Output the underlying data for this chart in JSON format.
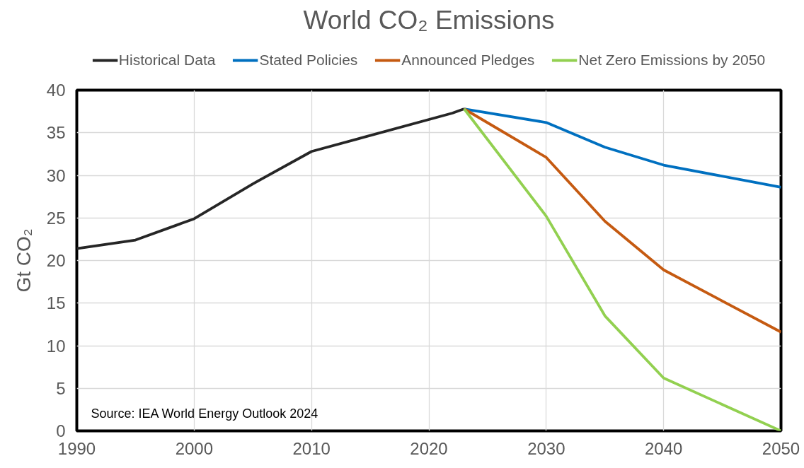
{
  "chart_data": {
    "type": "line",
    "title": "World CO₂ Emissions",
    "ylabel": "Gt CO₂",
    "xlim": [
      1990,
      2050
    ],
    "xticks": [
      1990,
      2000,
      2010,
      2020,
      2030,
      2040,
      2050
    ],
    "ylim": [
      0,
      40
    ],
    "yticks": [
      0,
      5,
      10,
      15,
      20,
      25,
      30,
      35,
      40
    ],
    "grid": true,
    "legend": "top",
    "line_style": "solid",
    "marker": "none",
    "annotations": [
      "Source: IEA World Energy Outlook 2024"
    ],
    "series": [
      {
        "name": "Historical Data",
        "color": "#262626",
        "x": [
          1990,
          1995,
          2000,
          2005,
          2010,
          2022,
          2023
        ],
        "values": [
          21.4,
          22.4,
          24.9,
          29.0,
          32.8,
          37.3,
          37.8
        ]
      },
      {
        "name": "Stated Policies",
        "color": "#0070c0",
        "x": [
          2023,
          2030,
          2035,
          2040,
          2050
        ],
        "values": [
          37.8,
          36.2,
          33.3,
          31.2,
          28.6
        ]
      },
      {
        "name": "Announced Pledges",
        "color": "#c55a11",
        "x": [
          2023,
          2030,
          2035,
          2040,
          2050
        ],
        "values": [
          37.8,
          32.1,
          24.6,
          18.9,
          11.6
        ]
      },
      {
        "name": "Net Zero Emissions by 2050",
        "color": "#92d050",
        "x": [
          2023,
          2030,
          2035,
          2040,
          2050
        ],
        "values": [
          37.8,
          25.2,
          13.5,
          6.2,
          0
        ]
      }
    ]
  }
}
